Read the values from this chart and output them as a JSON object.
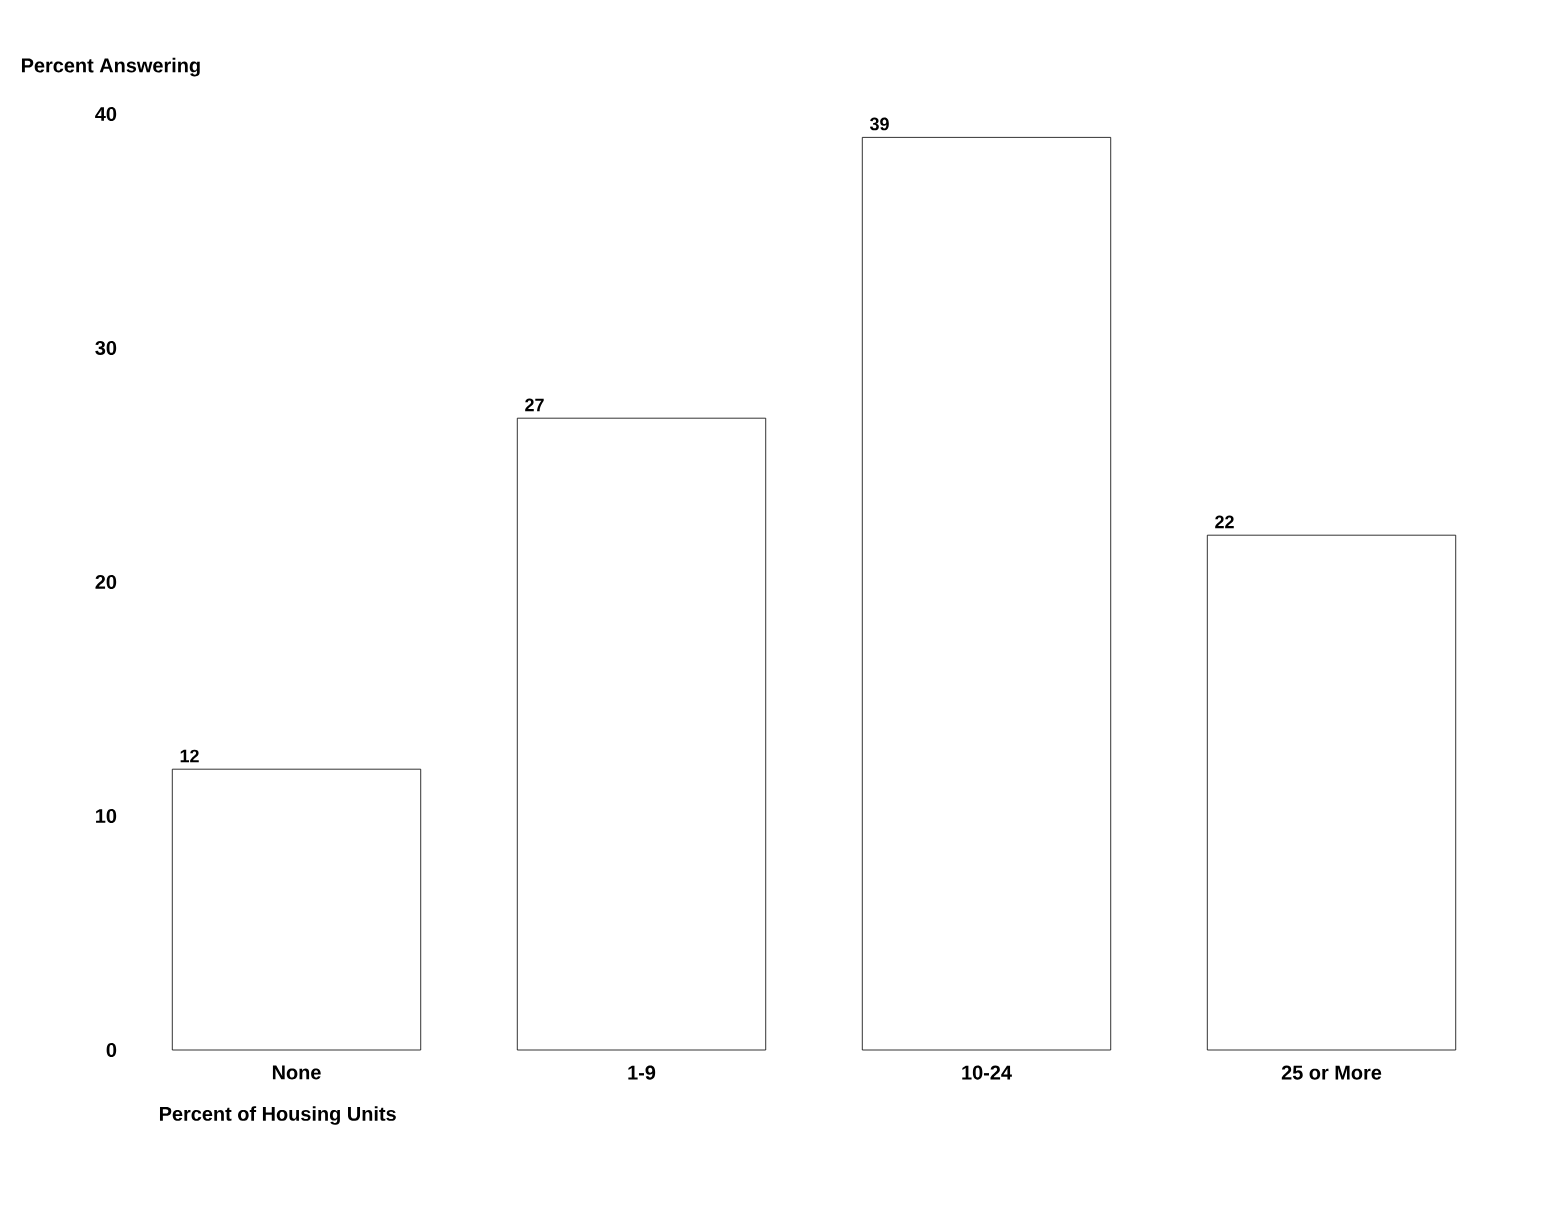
{
  "chart_data": {
    "type": "bar",
    "xlabel": "Percent of Housing Units",
    "ylabel": "Percent Answering",
    "categories": [
      "None",
      "1-9",
      "10-24",
      "25 or More"
    ],
    "values": [
      12,
      27,
      39,
      22
    ],
    "color": "#ffffff",
    "ylim": [
      0,
      40
    ],
    "yticks": [
      0,
      10,
      20,
      30,
      40
    ],
    "data_labels": true
  }
}
